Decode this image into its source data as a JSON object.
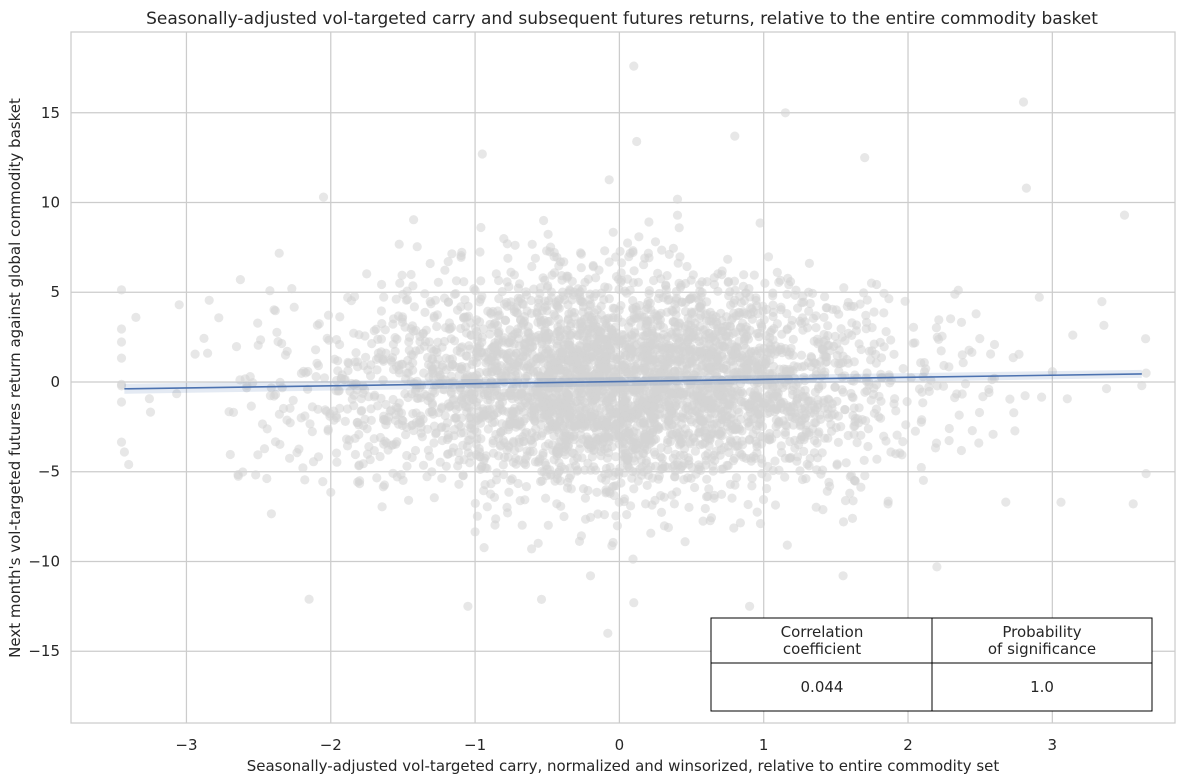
{
  "chart_data": {
    "type": "scatter",
    "title": "Seasonally-adjusted vol-targeted carry and subsequent futures returns, relative to the entire commodity basket",
    "xlabel": "Seasonally-adjusted vol-targeted carry, normalized and winsorized, relative to entire commodity set",
    "ylabel": "Next month's vol-targeted futures return against global commodity basket",
    "xlim": [
      -3.8,
      3.85
    ],
    "ylim": [
      -19.0,
      19.5
    ],
    "xticks": [
      -3,
      -2,
      -1,
      0,
      1,
      2,
      3
    ],
    "xtick_labels": [
      "−3",
      "−2",
      "−1",
      "0",
      "1",
      "2",
      "3"
    ],
    "yticks": [
      -15,
      -10,
      -5,
      0,
      5,
      10,
      15
    ],
    "ytick_labels": [
      "−15",
      "−10",
      "−5",
      "0",
      "5",
      "10",
      "15"
    ],
    "grid": true,
    "point_color": "#d3d3d3",
    "line_color": "#4c72b0",
    "n_points_approx": 4000,
    "regression_line": {
      "x": [
        -3.43,
        3.62
      ],
      "y": [
        -0.38,
        0.45
      ]
    },
    "point_distribution": {
      "x_mean": 0.0,
      "x_std": 0.9,
      "y_mean": 0.0,
      "y_std": 3.0,
      "x_range": [
        -3.45,
        3.65
      ],
      "y_range": [
        -14.0,
        17.6
      ]
    },
    "sample_points": [
      {
        "x": 0.1,
        "y": 17.6
      },
      {
        "x": 2.8,
        "y": 15.6
      },
      {
        "x": 1.15,
        "y": 15.0
      },
      {
        "x": 0.8,
        "y": 13.7
      },
      {
        "x": 0.12,
        "y": 13.4
      },
      {
        "x": 1.7,
        "y": 12.5
      },
      {
        "x": -0.95,
        "y": 12.7
      },
      {
        "x": -2.05,
        "y": 10.3
      },
      {
        "x": 2.82,
        "y": 10.8
      },
      {
        "x": -2.15,
        "y": -12.1
      },
      {
        "x": -1.05,
        "y": -12.5
      },
      {
        "x": 0.1,
        "y": -12.3
      },
      {
        "x": 2.2,
        "y": -10.3
      },
      {
        "x": -0.08,
        "y": -14.0
      },
      {
        "x": -0.2,
        "y": -10.8
      },
      {
        "x": -3.43,
        "y": -3.9
      },
      {
        "x": -3.4,
        "y": -4.6
      },
      {
        "x": 3.5,
        "y": 9.3
      },
      {
        "x": -3.35,
        "y": 3.6
      },
      {
        "x": 3.62,
        "y": -0.2
      },
      {
        "x": -3.05,
        "y": 4.3
      },
      {
        "x": 1.55,
        "y": -10.8
      },
      {
        "x": -1.8,
        "y": -5.5
      },
      {
        "x": 3.06,
        "y": -6.7
      }
    ],
    "stats_table": {
      "headers": [
        "Correlation\ncoefficient",
        "Probability\nof significance"
      ],
      "values": [
        "0.044",
        "1.0"
      ]
    }
  }
}
